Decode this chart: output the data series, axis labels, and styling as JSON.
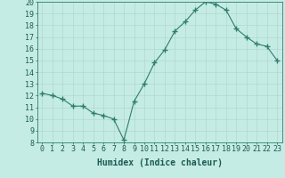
{
  "x": [
    0,
    1,
    2,
    3,
    4,
    5,
    6,
    7,
    8,
    9,
    10,
    11,
    12,
    13,
    14,
    15,
    16,
    17,
    18,
    19,
    20,
    21,
    22,
    23
  ],
  "y": [
    12.2,
    12.0,
    11.7,
    11.1,
    11.1,
    10.5,
    10.3,
    10.0,
    8.2,
    11.5,
    13.0,
    14.8,
    15.9,
    17.5,
    18.3,
    19.3,
    20.0,
    19.8,
    19.3,
    17.7,
    17.0,
    16.4,
    16.2,
    15.0
  ],
  "line_color": "#2e7d6e",
  "marker": "+",
  "marker_size": 4,
  "bg_color": "#c5ece4",
  "grid_color": "#b0d8cf",
  "xlabel": "Humidex (Indice chaleur)",
  "ylim": [
    8,
    20
  ],
  "xlim": [
    -0.5,
    23.5
  ],
  "yticks": [
    8,
    9,
    10,
    11,
    12,
    13,
    14,
    15,
    16,
    17,
    18,
    19,
    20
  ],
  "xticks": [
    0,
    1,
    2,
    3,
    4,
    5,
    6,
    7,
    8,
    9,
    10,
    11,
    12,
    13,
    14,
    15,
    16,
    17,
    18,
    19,
    20,
    21,
    22,
    23
  ],
  "xlabel_fontsize": 7,
  "tick_fontsize": 6,
  "label_color": "#1a5c52",
  "spine_color": "#2e7d6e"
}
